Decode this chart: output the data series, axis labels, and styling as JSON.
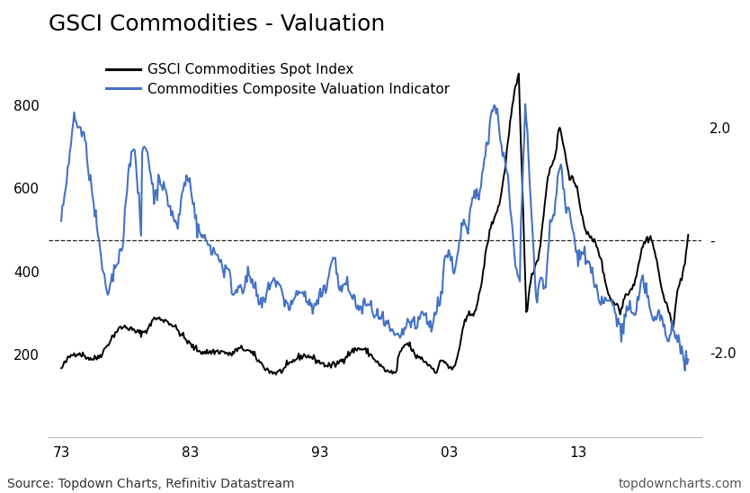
{
  "title": "GSCI Commodities - Valuation",
  "legend_line1": "GSCI Commodities Spot Index",
  "legend_line2": "Commodities Composite Valuation Indicator",
  "source_left": "Source: Topdown Charts, Refinitiv Datastream",
  "source_right": "topdowncharts.com",
  "left_ylim": [
    0,
    950
  ],
  "left_yticks": [
    200,
    400,
    600,
    800
  ],
  "right_ylim": [
    -3.5,
    3.5
  ],
  "right_yticks": [
    -2.0,
    0.0,
    2.0
  ],
  "right_ytick_labels": [
    "-2.0",
    "-",
    "2.0"
  ],
  "xtick_labels": [
    "73",
    "83",
    "93",
    "03",
    "13"
  ],
  "background_color": "#ffffff",
  "black_line_color": "#000000",
  "blue_line_color": "#4472C4",
  "dashed_line_color": "#000000",
  "title_fontsize": 18,
  "label_fontsize": 11,
  "source_fontsize": 10
}
